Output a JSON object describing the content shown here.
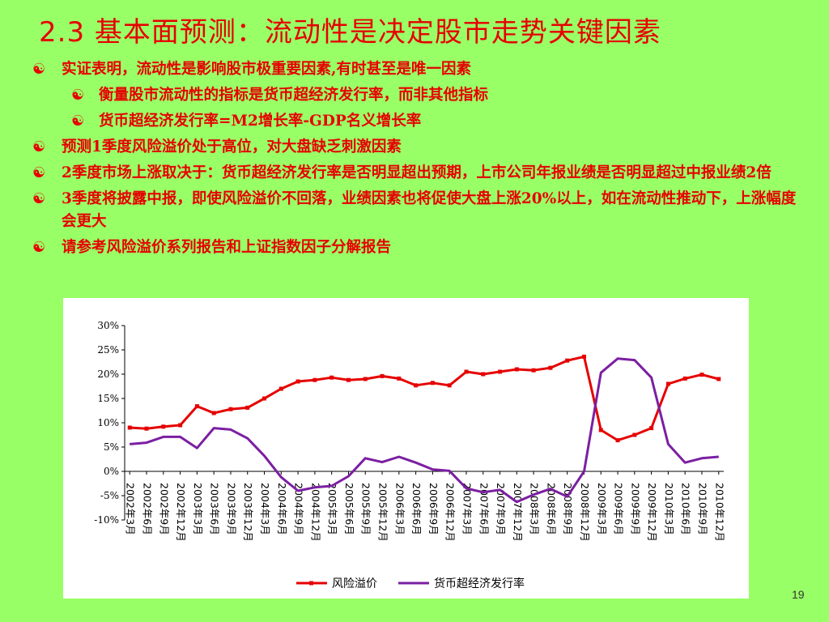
{
  "slide": {
    "title": "2.3 基本面预测：流动性是决定股市走势关键因素",
    "page_number": "19",
    "bullets": [
      {
        "level": 1,
        "text": "实证表明，流动性是影响股市极重要因素,有时甚至是唯一因素"
      },
      {
        "level": 2,
        "text": "衡量股市流动性的指标是货币超经济发行率，而非其他指标"
      },
      {
        "level": 2,
        "text": "货币超经济发行率=M2增长率-GDP名义增长率"
      },
      {
        "level": 1,
        "text": "预测1季度风险溢价处于高位，对大盘缺乏刺激因素"
      },
      {
        "level": 1,
        "text": "2季度市场上涨取决于：货币超经济发行率是否明显超出预期，上市公司年报业绩是否明显超过中报业绩2倍"
      },
      {
        "level": 1,
        "text": "3季度将披露中报，即使风险溢价不回落，业绩因素也将促使大盘上涨20%以上，如在流动性推动下，上涨幅度会更大"
      },
      {
        "level": 1,
        "text": "请参考风险溢价系列报告和上证指数因子分解报告"
      }
    ],
    "bullet_glyph": "☯",
    "colors": {
      "background": "#99ff66",
      "text": "#e60000"
    }
  },
  "chart_data": {
    "type": "line",
    "title": "",
    "xlabel": "",
    "ylabel": "",
    "ylim": [
      -0.1,
      0.3
    ],
    "yticks": [
      "30%",
      "25%",
      "20%",
      "15%",
      "10%",
      "5%",
      "0%",
      "-5%",
      "-10%"
    ],
    "ytick_values": [
      0.3,
      0.25,
      0.2,
      0.15,
      0.1,
      0.05,
      0,
      -0.05,
      -0.1
    ],
    "legend_position": "bottom",
    "x": [
      "2002年3月",
      "2002年6月",
      "2002年9月",
      "2002年12月",
      "2003年3月",
      "2003年6月",
      "2003年9月",
      "2003年12月",
      "2004年3月",
      "2004年6月",
      "2004年9月",
      "2004年12月",
      "2005年3月",
      "2005年6月",
      "2005年9月",
      "2005年12月",
      "2006年3月",
      "2006年6月",
      "2006年9月",
      "2006年12月",
      "2007年3月",
      "2007年6月",
      "2007年9月",
      "2007年12月",
      "2008年3月",
      "2008年6月",
      "2008年9月",
      "2008年12月",
      "2009年3月",
      "2009年6月",
      "2009年9月",
      "2009年12月",
      "2010年3月",
      "2010年6月",
      "2010年9月",
      "2010年12月"
    ],
    "series": [
      {
        "name": "风险溢价",
        "color": "#e60000",
        "marker": "square",
        "values": [
          0.09,
          0.088,
          0.092,
          0.095,
          0.134,
          0.12,
          0.128,
          0.131,
          0.15,
          0.17,
          0.185,
          0.188,
          0.193,
          0.188,
          0.19,
          0.196,
          0.191,
          0.177,
          0.182,
          0.177,
          0.205,
          0.2,
          0.205,
          0.21,
          0.208,
          0.213,
          0.228,
          0.236,
          0.085,
          0.064,
          0.075,
          0.089,
          0.18,
          0.191,
          0.199,
          0.19
        ]
      },
      {
        "name": "货币超经济发行率",
        "color": "#7b1fa2",
        "marker": "none",
        "values": [
          0.056,
          0.059,
          0.071,
          0.071,
          0.048,
          0.089,
          0.086,
          0.068,
          0.032,
          -0.012,
          -0.04,
          -0.033,
          -0.03,
          -0.01,
          0.027,
          0.019,
          0.03,
          0.018,
          0.004,
          0.001,
          -0.035,
          -0.043,
          -0.038,
          -0.063,
          -0.048,
          -0.036,
          -0.052,
          0.0,
          0.203,
          0.232,
          0.229,
          0.193,
          0.056,
          0.018,
          0.027,
          0.03
        ]
      }
    ]
  }
}
